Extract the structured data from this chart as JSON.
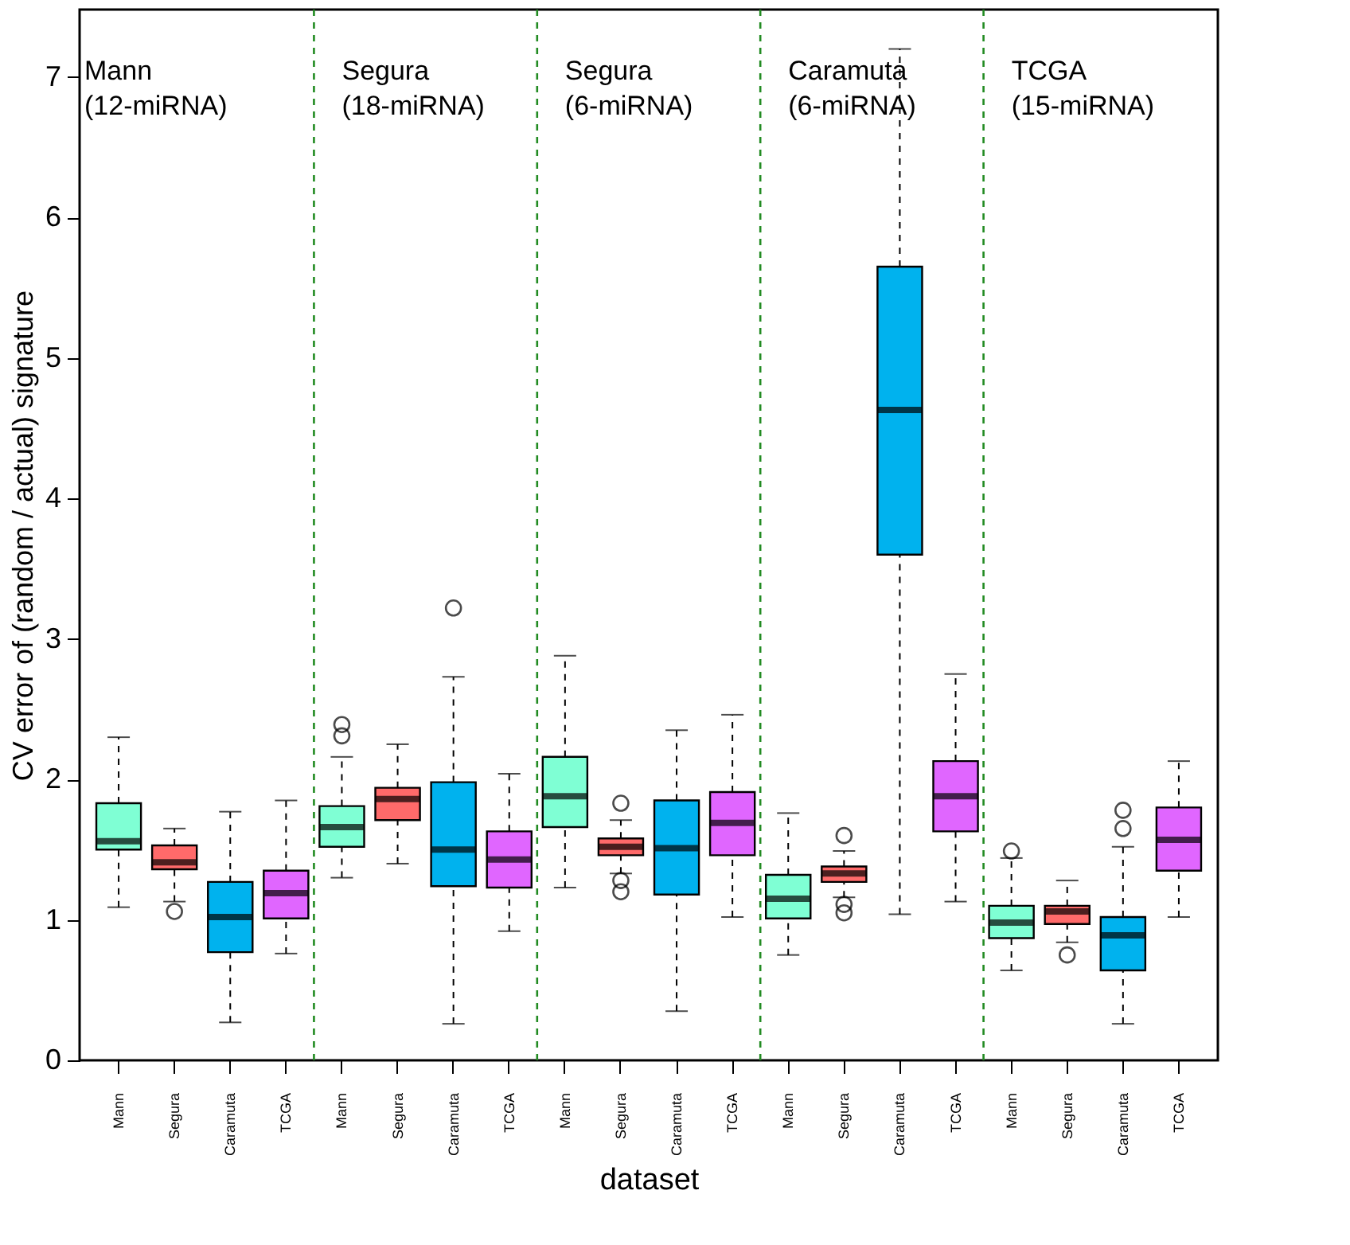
{
  "chart_data": {
    "type": "box",
    "xlabel": "dataset",
    "ylabel": "CV error of (random / actual) signature",
    "categories": [
      "Mann",
      "Segura",
      "Caramuta",
      "TCGA",
      "Mann",
      "Segura",
      "Caramuta",
      "TCGA",
      "Mann",
      "Segura",
      "Caramuta",
      "TCGA",
      "Mann",
      "Segura",
      "Caramuta",
      "TCGA",
      "Mann",
      "Segura",
      "Caramuta",
      "TCGA"
    ],
    "ylim": [
      0,
      7.48
    ],
    "yticks": [
      0,
      1,
      2,
      3,
      4,
      5,
      6,
      7
    ],
    "grid": false,
    "colors": [
      "#7fffd4",
      "#ff6a6a",
      "#00b2ee",
      "#e066ff",
      "#7fffd4",
      "#ff6a6a",
      "#00b2ee",
      "#e066ff",
      "#7fffd4",
      "#ff6a6a",
      "#00b2ee",
      "#e066ff",
      "#7fffd4",
      "#ff6a6a",
      "#00b2ee",
      "#e066ff",
      "#7fffd4",
      "#ff6a6a",
      "#00b2ee",
      "#e066ff"
    ],
    "boxes": [
      {
        "low": 1.09,
        "q1": 1.5,
        "median": 1.56,
        "q3": 1.83,
        "high": 2.3
      },
      {
        "low": 1.13,
        "q1": 1.36,
        "median": 1.41,
        "q3": 1.53,
        "high": 1.65,
        "outliers": [
          1.06
        ]
      },
      {
        "low": 0.27,
        "q1": 0.77,
        "median": 1.02,
        "q3": 1.27,
        "high": 1.77
      },
      {
        "low": 0.76,
        "q1": 1.01,
        "median": 1.19,
        "q3": 1.35,
        "high": 1.85
      },
      {
        "low": 1.3,
        "q1": 1.52,
        "median": 1.66,
        "q3": 1.81,
        "high": 2.16,
        "outliers": [
          2.39,
          2.31
        ]
      },
      {
        "low": 1.4,
        "q1": 1.71,
        "median": 1.86,
        "q3": 1.94,
        "high": 2.25
      },
      {
        "low": 0.26,
        "q1": 1.24,
        "median": 1.5,
        "q3": 1.98,
        "high": 2.73,
        "outliers": [
          3.22
        ]
      },
      {
        "low": 0.92,
        "q1": 1.23,
        "median": 1.43,
        "q3": 1.63,
        "high": 2.04
      },
      {
        "low": 1.23,
        "q1": 1.66,
        "median": 1.88,
        "q3": 2.16,
        "high": 2.88
      },
      {
        "low": 1.33,
        "q1": 1.46,
        "median": 1.52,
        "q3": 1.58,
        "high": 1.71,
        "outliers": [
          1.83,
          1.28,
          1.2
        ]
      },
      {
        "low": 0.35,
        "q1": 1.18,
        "median": 1.51,
        "q3": 1.85,
        "high": 2.35
      },
      {
        "low": 1.02,
        "q1": 1.46,
        "median": 1.69,
        "q3": 1.91,
        "high": 2.46
      },
      {
        "low": 0.75,
        "q1": 1.01,
        "median": 1.15,
        "q3": 1.32,
        "high": 1.76
      },
      {
        "low": 1.16,
        "q1": 1.27,
        "median": 1.33,
        "q3": 1.38,
        "high": 1.49,
        "outliers": [
          1.6,
          1.11,
          1.05
        ]
      },
      {
        "low": 1.04,
        "q1": 3.6,
        "median": 4.63,
        "q3": 5.65,
        "high": 7.2
      },
      {
        "low": 1.13,
        "q1": 1.63,
        "median": 1.88,
        "q3": 2.13,
        "high": 2.75
      },
      {
        "low": 0.64,
        "q1": 0.87,
        "median": 0.98,
        "q3": 1.1,
        "high": 1.44,
        "outliers": [
          1.49
        ]
      },
      {
        "low": 0.84,
        "q1": 0.97,
        "median": 1.06,
        "q3": 1.1,
        "high": 1.28,
        "outliers": [
          0.75
        ]
      },
      {
        "low": 0.26,
        "q1": 0.64,
        "median": 0.89,
        "q3": 1.02,
        "high": 1.52,
        "outliers": [
          1.78,
          1.65
        ]
      },
      {
        "low": 1.02,
        "q1": 1.35,
        "median": 1.57,
        "q3": 1.8,
        "high": 2.13
      }
    ],
    "annotations": [
      "Mann\n(12-miRNA)",
      "Segura\n(18-miRNA)",
      "Segura\n(6-miRNA)",
      "Caramuta\n(6-miRNA)",
      "TCGA\n(15-miRNA)"
    ]
  }
}
